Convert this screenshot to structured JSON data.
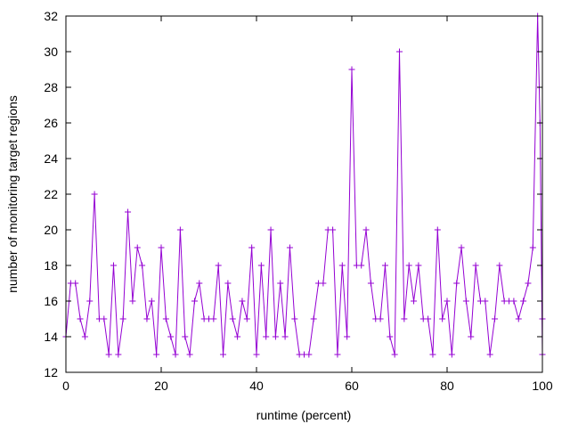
{
  "chart_data": {
    "type": "line",
    "title": "",
    "xlabel": "runtime (percent)",
    "ylabel": "number of monitoring target regions",
    "xlim": [
      0,
      100
    ],
    "ylim": [
      12,
      32
    ],
    "xticks": [
      0,
      20,
      40,
      60,
      80,
      100
    ],
    "yticks": [
      12,
      14,
      16,
      18,
      20,
      22,
      24,
      26,
      28,
      30,
      32
    ],
    "grid": false,
    "legend": "none",
    "marker": "plus",
    "series": [
      {
        "color": "#9400d3",
        "x": [
          0,
          1,
          2,
          3,
          4,
          5,
          6,
          7,
          8,
          9,
          10,
          11,
          12,
          13,
          14,
          15,
          16,
          17,
          18,
          19,
          20,
          21,
          22,
          23,
          24,
          25,
          26,
          27,
          28,
          29,
          30,
          31,
          32,
          33,
          34,
          35,
          36,
          37,
          38,
          39,
          40,
          41,
          42,
          43,
          44,
          45,
          46,
          47,
          48,
          49,
          50,
          51,
          52,
          53,
          54,
          55,
          56,
          57,
          58,
          59,
          60,
          61,
          62,
          63,
          64,
          65,
          66,
          67,
          68,
          69,
          70,
          71,
          72,
          73,
          74,
          75,
          76,
          77,
          78,
          79,
          80,
          81,
          82,
          83,
          84,
          85,
          86,
          87,
          88,
          89,
          90,
          91,
          92,
          93,
          94,
          95,
          96,
          97,
          98,
          99,
          99.5,
          100,
          100
        ],
        "y": [
          14,
          17,
          17,
          15,
          14,
          16,
          22,
          15,
          15,
          13,
          18,
          13,
          15,
          21,
          16,
          19,
          18,
          15,
          16,
          13,
          19,
          15,
          14,
          13,
          20,
          14,
          13,
          16,
          17,
          15,
          15,
          15,
          18,
          13,
          17,
          15,
          14,
          16,
          15,
          19,
          13,
          18,
          14,
          20,
          14,
          17,
          14,
          19,
          15,
          13,
          13,
          13,
          15,
          17,
          17,
          20,
          20,
          13,
          18,
          14,
          29,
          18,
          18,
          20,
          17,
          15,
          15,
          18,
          14,
          13,
          30,
          15,
          18,
          16,
          18,
          15,
          15,
          13,
          20,
          15,
          16,
          13,
          17,
          19,
          16,
          14,
          18,
          16,
          16,
          13,
          15,
          18,
          16,
          16,
          16,
          15,
          16,
          17,
          19,
          32,
          26,
          13,
          15
        ]
      }
    ]
  }
}
